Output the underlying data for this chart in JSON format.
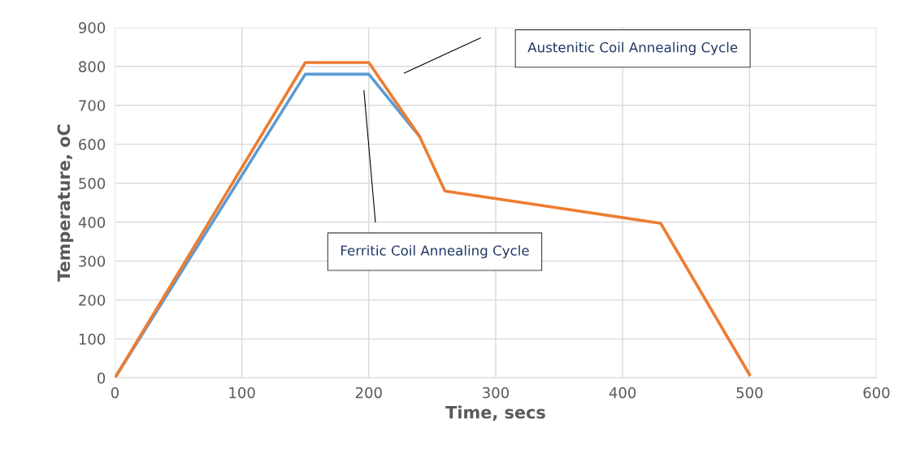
{
  "chart_data": {
    "type": "line",
    "xlabel": "Time, secs",
    "ylabel": "Temperature, oC",
    "series": [
      {
        "color": "#5b9bd5",
        "x": [
          0,
          150,
          200,
          240
        ],
        "values": [
          0,
          780,
          780,
          620
        ]
      },
      {
        "color": "#ed7d31",
        "x": [
          0,
          150,
          200,
          240,
          260,
          430,
          500
        ],
        "values": [
          0,
          810,
          810,
          620,
          480,
          397,
          8
        ]
      }
    ],
    "xlim": [
      0,
      600
    ],
    "xticks": [
      0,
      100,
      200,
      300,
      400,
      500,
      600
    ],
    "ylim": [
      0,
      900
    ],
    "yticks": [
      0,
      100,
      200,
      300,
      400,
      500,
      600,
      700,
      800,
      900
    ],
    "grid": true,
    "marker": "none",
    "line_style": "solid",
    "annotations": [
      "Austenitic Coil Annealing Cycle",
      "Ferritic Coil Annealing Cycle"
    ]
  }
}
